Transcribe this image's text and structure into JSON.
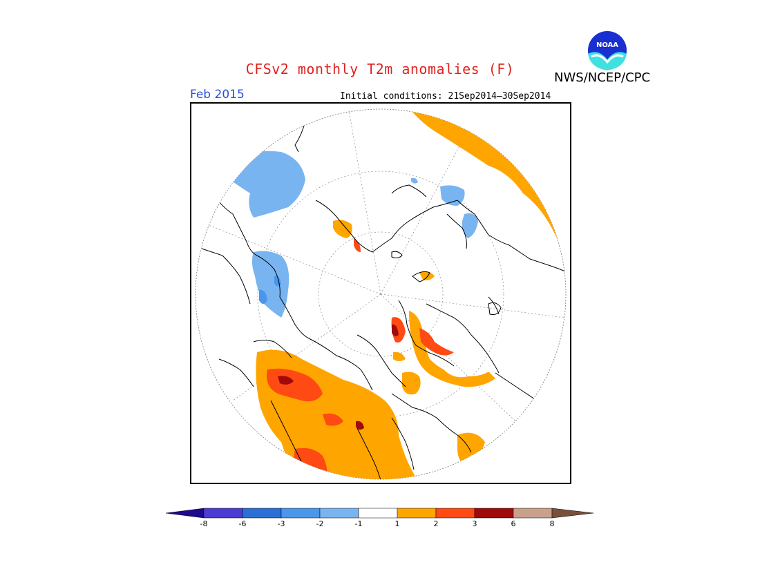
{
  "title": "CFSv2 monthly T2m anomalies (F)",
  "organization": "NWS/NCEP/CPC",
  "logo": {
    "text": "NOAA",
    "icon": "noaa-logo-icon"
  },
  "valid_month": "Feb 2015",
  "initial_conditions": "Initial conditions: 21Sep2014–30Sep2014",
  "map": {
    "projection": "polar-stereographic",
    "hemisphere": "north"
  },
  "colorbar": {
    "labels": [
      "-8",
      "-6",
      "-3",
      "-2",
      "-1",
      "1",
      "2",
      "3",
      "6",
      "8"
    ],
    "colors": {
      "lt_minus8": "#1e0a8c",
      "m8_m6": "#4b3cd2",
      "m6_m3": "#2a6fd6",
      "m3_m2": "#4a96ea",
      "m2_m1": "#78b4f0",
      "m1_1": "#ffffff",
      "p1_p2": "#ffa500",
      "p2_p3": "#ff4a14",
      "p3_p6": "#a00a0a",
      "p6_p8": "#c8a08c",
      "gt_8": "#78503c"
    }
  }
}
